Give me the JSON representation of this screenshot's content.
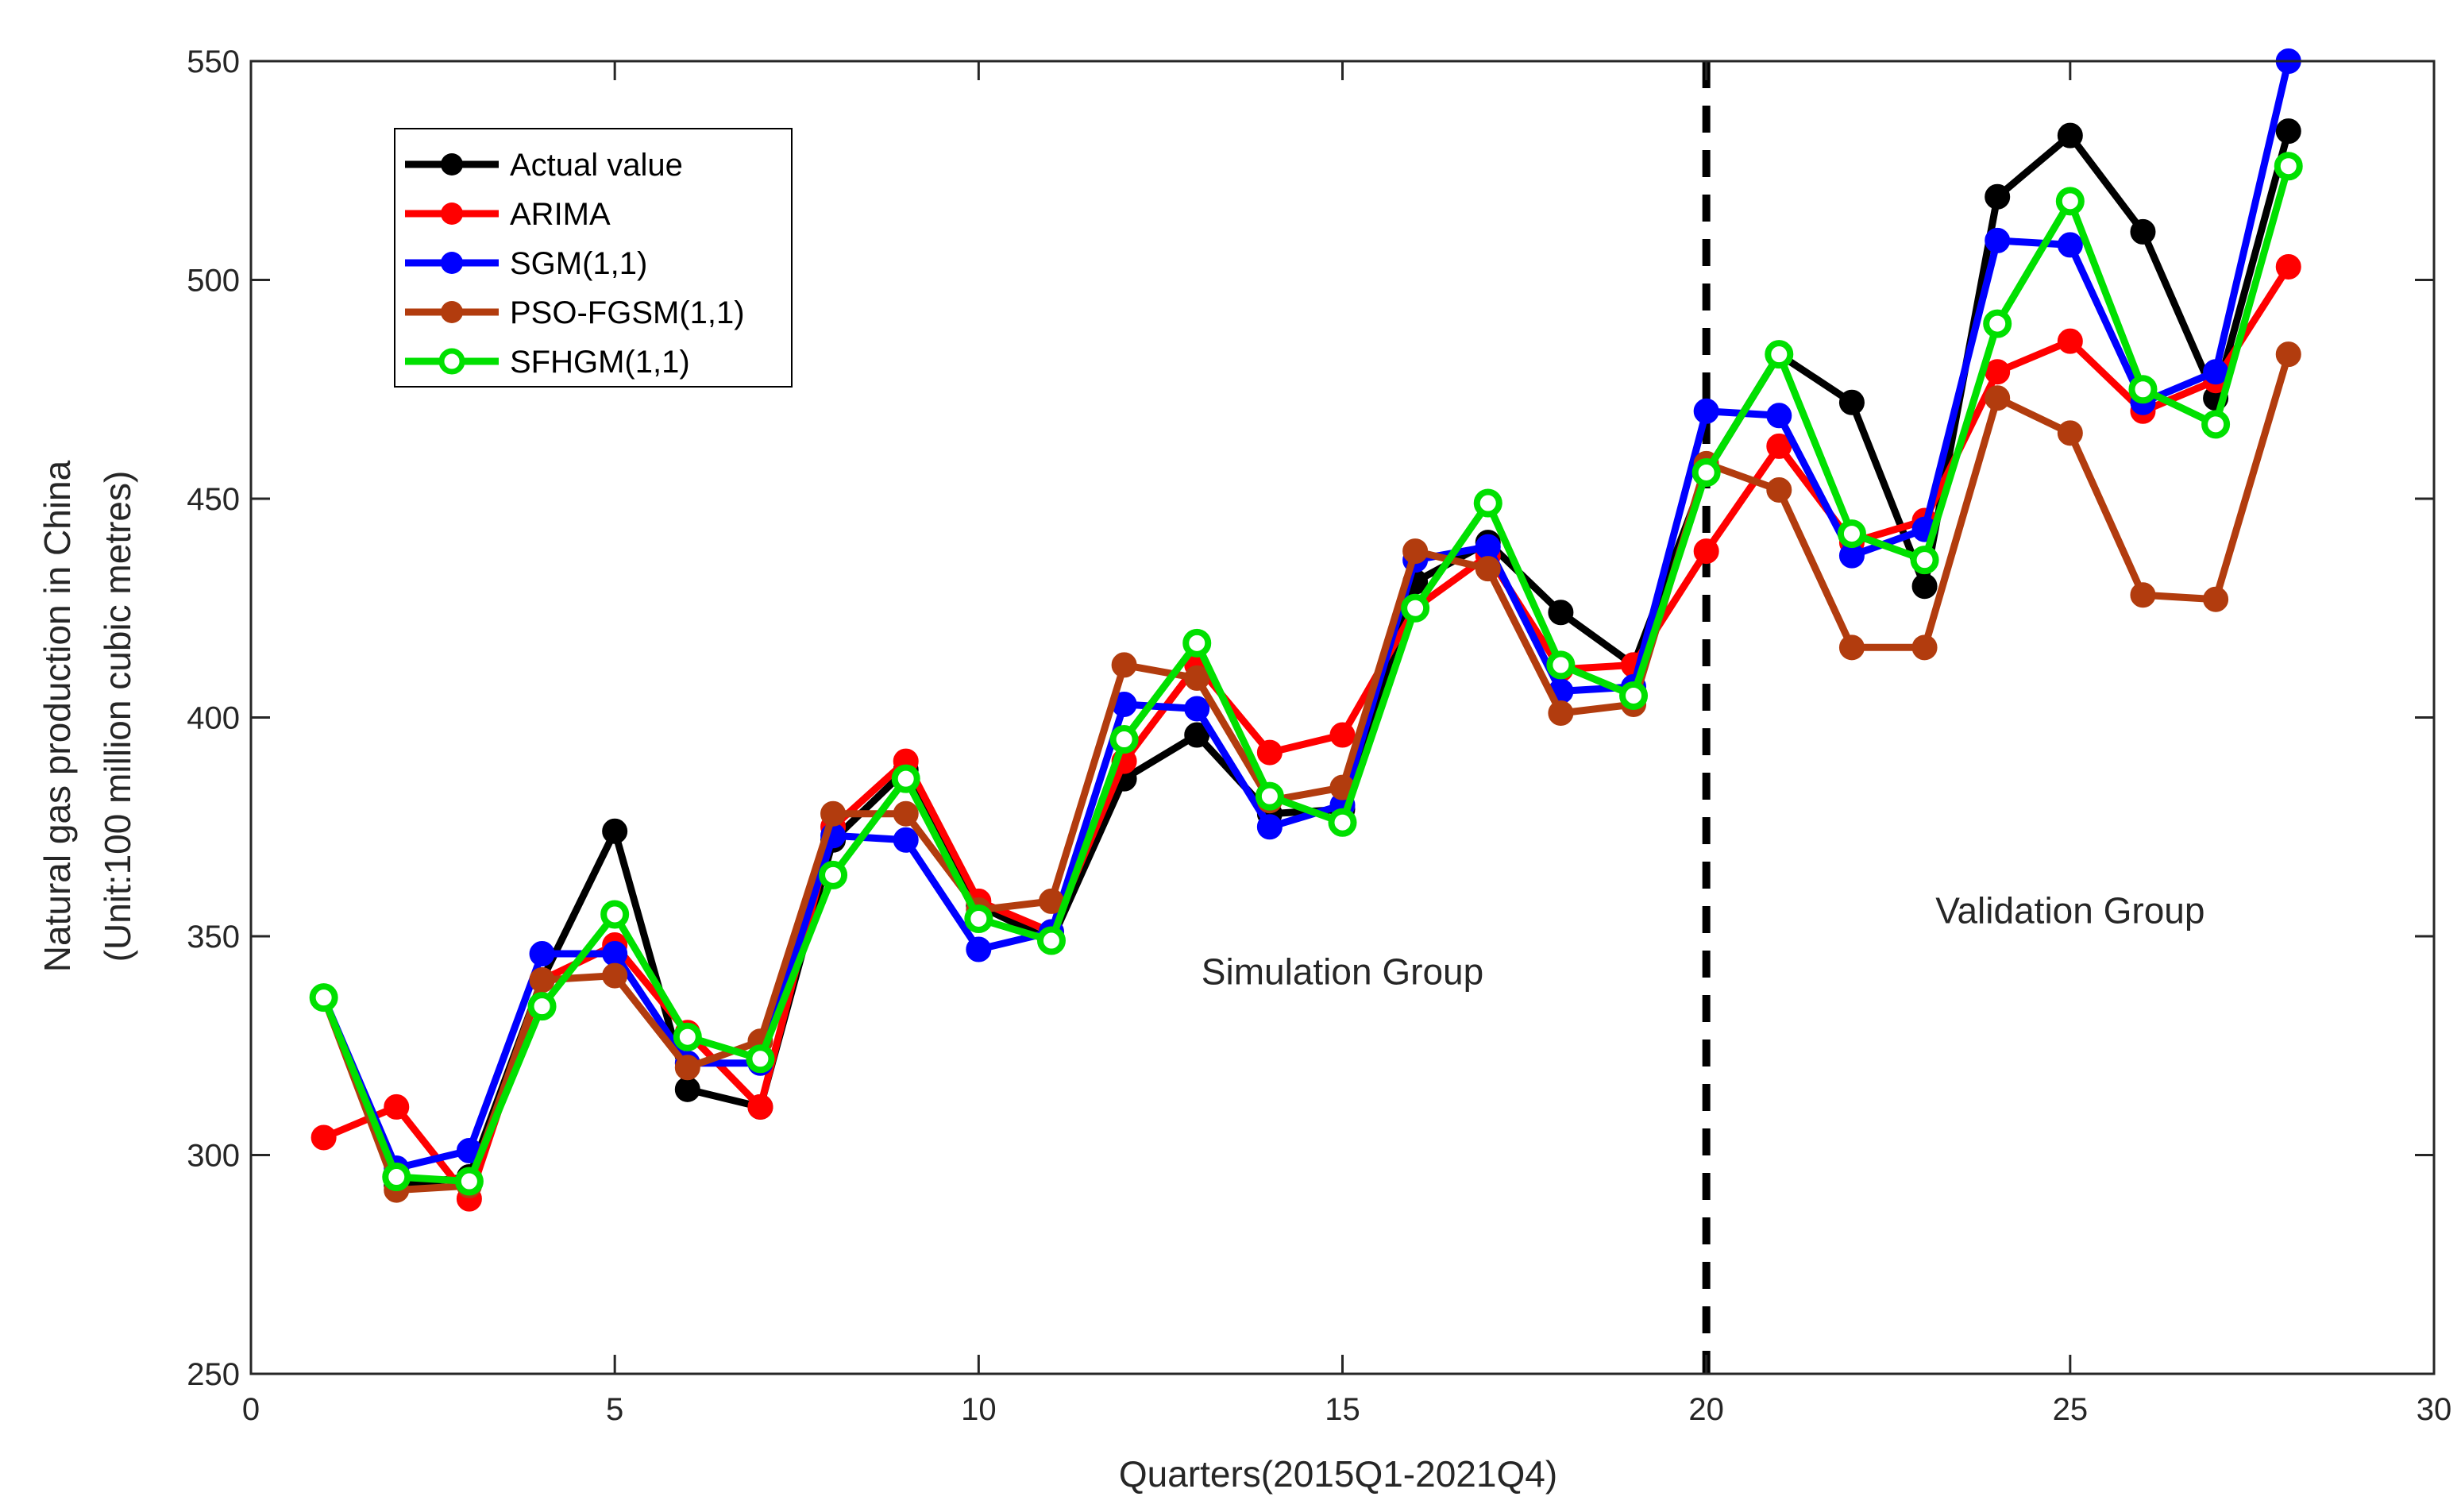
{
  "chart_data": {
    "type": "line",
    "xlabel": "Quarters(2015Q1-2021Q4)",
    "ylabel_lines": [
      "Natural gas production in China",
      "(Unit:100 million cubic metres)"
    ],
    "xlim": [
      0,
      30
    ],
    "ylim": [
      250,
      550
    ],
    "xticks": [
      0,
      5,
      10,
      15,
      20,
      25,
      30
    ],
    "yticks": [
      250,
      300,
      350,
      400,
      450,
      500,
      550
    ],
    "grid": false,
    "legend_position": "top-left",
    "split_line_x": 20,
    "annotations": [
      {
        "text": "Simulation Group",
        "x": 15,
        "y": 339
      },
      {
        "text": "Validation Group",
        "x": 25,
        "y": 353
      }
    ],
    "x": [
      1,
      2,
      3,
      4,
      5,
      6,
      7,
      8,
      9,
      10,
      11,
      12,
      13,
      14,
      15,
      16,
      17,
      18,
      19,
      20,
      21,
      22,
      23,
      24,
      25,
      26,
      27,
      28
    ],
    "series": [
      {
        "name": "Actual value",
        "color": "#000000",
        "marker": "filled",
        "values": [
          336,
          293,
          295,
          340,
          374,
          315,
          311,
          372,
          388,
          357,
          349,
          386,
          396,
          378,
          379,
          431,
          440,
          424,
          412,
          456,
          483,
          472,
          430,
          519,
          533,
          511,
          473,
          534
        ]
      },
      {
        "name": "ARIMA",
        "color": "#ff0000",
        "marker": "filled",
        "values": [
          304,
          311,
          290,
          340,
          348,
          328,
          311,
          375,
          390,
          358,
          351,
          390,
          412,
          392,
          396,
          425,
          437,
          411,
          412,
          438,
          462,
          440,
          445,
          479,
          486,
          470,
          477,
          503
        ]
      },
      {
        "name": "SGM(1,1)",
        "color": "#0000ff",
        "marker": "filled",
        "values": [
          336,
          297,
          301,
          346,
          346,
          321,
          321,
          373,
          372,
          347,
          351,
          403,
          402,
          375,
          380,
          436,
          439,
          406,
          407,
          470,
          469,
          437,
          443,
          509,
          508,
          472,
          479,
          550
        ]
      },
      {
        "name": "PSO-FGSM(1,1)",
        "color": "#b23c0e",
        "marker": "filled",
        "values": [
          336,
          292,
          293,
          340,
          341,
          320,
          326,
          378,
          378,
          356,
          358,
          412,
          409,
          381,
          384,
          438,
          434,
          401,
          403,
          458,
          452,
          416,
          416,
          473,
          465,
          428,
          427,
          483
        ]
      },
      {
        "name": "SFHGM(1,1)",
        "color": "#00e000",
        "marker": "open",
        "values": [
          336,
          295,
          294,
          334,
          355,
          327,
          322,
          364,
          386,
          354,
          349,
          395,
          417,
          382,
          376,
          425,
          449,
          412,
          405,
          456,
          483,
          442,
          436,
          490,
          518,
          475,
          467,
          526
        ]
      }
    ]
  }
}
